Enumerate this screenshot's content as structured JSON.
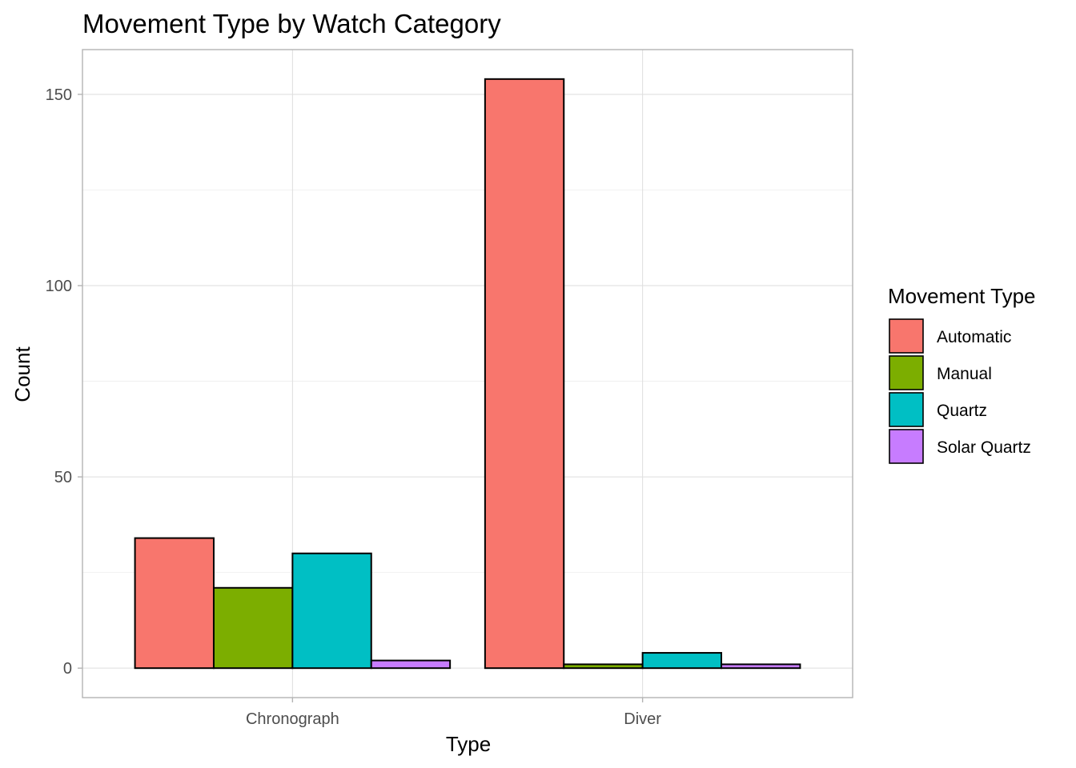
{
  "chart_data": {
    "type": "bar",
    "title": "Movement Type by Watch Category",
    "xlabel": "Type",
    "ylabel": "Count",
    "categories": [
      "Chronograph",
      "Diver"
    ],
    "series": [
      {
        "name": "Automatic",
        "color": "#F8766D",
        "values": [
          34,
          154
        ]
      },
      {
        "name": "Manual",
        "color": "#7CAE00",
        "values": [
          21,
          1
        ]
      },
      {
        "name": "Quartz",
        "color": "#00BFC4",
        "values": [
          30,
          4
        ]
      },
      {
        "name": "Solar Quartz",
        "color": "#C77CFF",
        "values": [
          2,
          1
        ]
      }
    ],
    "yticks": [
      "0",
      "50",
      "100",
      "150"
    ],
    "ylim": [
      -7.7,
      161.7
    ],
    "grid": true,
    "legend": {
      "title": "Movement Type",
      "placement": "right"
    }
  }
}
